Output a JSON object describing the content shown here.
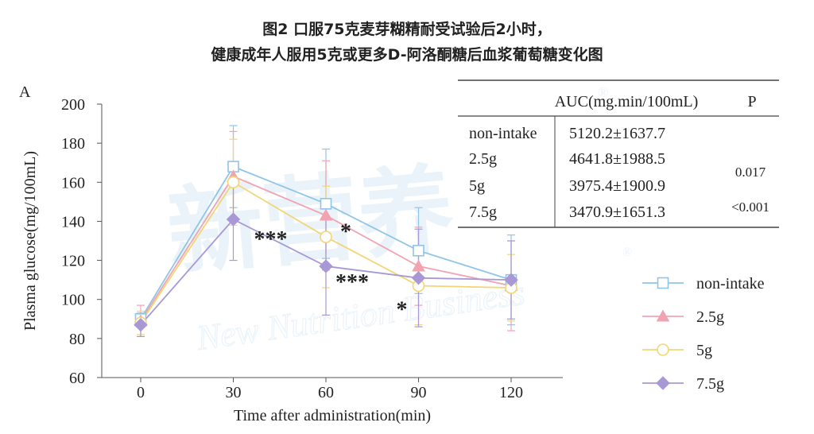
{
  "title_line1": "图2 口服75克麦芽糊精耐受试验后2小时，",
  "title_line2": "健康成年人服用5克或更多D-阿洛酮糖后血浆葡萄糖变化图",
  "panel_label": "A",
  "watermark": {
    "cn": "新营养",
    "en": "New Nutrition Business",
    "reg": "®"
  },
  "colors": {
    "axis": "#555555",
    "table_line": "#444444"
  },
  "chart_data": {
    "type": "line",
    "xlabel": "Time after administration(min)",
    "ylabel": "Plasma glucose(mg/100mL)",
    "x": [
      0,
      30,
      60,
      90,
      120
    ],
    "x_ticks": [
      "0",
      "30",
      "60",
      "90",
      "120"
    ],
    "ylim": [
      60,
      200
    ],
    "y_ticks": [
      "60",
      "80",
      "100",
      "120",
      "140",
      "160",
      "180",
      "200"
    ],
    "grid": false,
    "legend_position": "right",
    "series": [
      {
        "name": "non-intake",
        "color": "#8fc5e8",
        "marker": "square",
        "values": [
          90,
          168,
          149,
          125,
          110
        ],
        "err_high": [
          null,
          189,
          177,
          147,
          133
        ],
        "err_low": [
          null,
          147,
          121,
          103,
          87
        ]
      },
      {
        "name": "2.5g",
        "color": "#f0a4b2",
        "marker": "triangle",
        "values": [
          89,
          163,
          143,
          117,
          107
        ],
        "err_high": [
          97,
          186,
          171,
          137,
          130
        ],
        "err_low": [
          81,
          140,
          115,
          97,
          84
        ]
      },
      {
        "name": "5g",
        "color": "#f2d675",
        "marker": "circle",
        "values": [
          88,
          160,
          132,
          107,
          106
        ],
        "err_high": [
          94,
          182,
          158,
          127,
          123
        ],
        "err_low": [
          82,
          138,
          106,
          87,
          89
        ]
      },
      {
        "name": "7.5g",
        "color": "#a899d6",
        "marker": "diamond",
        "values": [
          87,
          141,
          117,
          111,
          110
        ],
        "err_high": [
          93,
          162,
          142,
          136,
          130
        ],
        "err_low": [
          81,
          120,
          92,
          86,
          90
        ]
      }
    ],
    "annotations": [
      {
        "text": "***",
        "x": 30,
        "y": 132
      },
      {
        "text": "*",
        "x": 60,
        "y": 136
      },
      {
        "text": "***",
        "x": 60,
        "y": 110
      },
      {
        "text": "*",
        "x": 90,
        "y": 96
      }
    ],
    "auc_table": {
      "headers": [
        "AUC(mg.min/100mL)",
        "P"
      ],
      "rows": [
        {
          "group": "non-intake",
          "auc": "5120.2±1637.7",
          "p": ""
        },
        {
          "group": "2.5g",
          "auc": "4641.8±1988.5",
          "p": ""
        },
        {
          "group": "5g",
          "auc": "3975.4±1900.9",
          "p": ""
        },
        {
          "group": "7.5g",
          "auc": "3470.9±1651.3",
          "p": ""
        }
      ],
      "p_values": [
        "0.017",
        "<0.001"
      ]
    }
  }
}
